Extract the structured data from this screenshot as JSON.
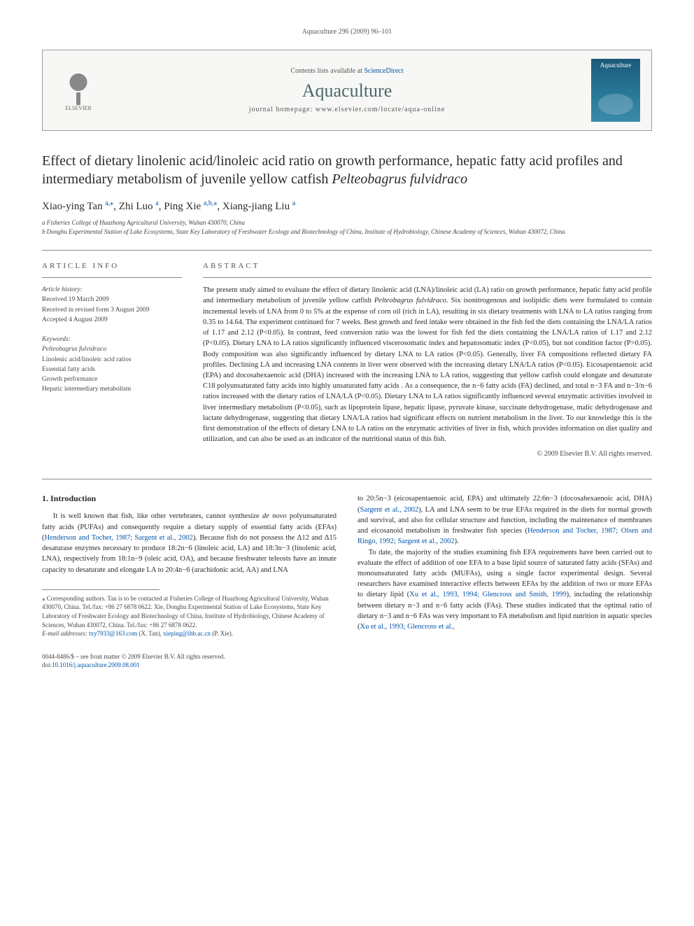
{
  "header": {
    "citation": "Aquaculture 296 (2009) 96–101"
  },
  "banner": {
    "contents_prefix": "Contents lists available at ",
    "contents_link": "ScienceDirect",
    "journal": "Aquaculture",
    "homepage_prefix": "journal homepage: ",
    "homepage": "www.elsevier.com/locate/aqua-online",
    "publisher_label": "ELSEVIER",
    "cover_label": "Aquaculture"
  },
  "title": {
    "main": "Effect of dietary linolenic acid/linoleic acid ratio on growth performance, hepatic fatty acid profiles and intermediary metabolism of juvenile yellow catfish ",
    "species": "Pelteobagrus fulvidraco"
  },
  "authors": {
    "line_parts": [
      {
        "name": "Xiao-ying Tan",
        "sup": "a,",
        "star": true
      },
      {
        "name": ", Zhi Luo",
        "sup": "a"
      },
      {
        "name": ", Ping Xie",
        "sup": "a,b,",
        "star": true
      },
      {
        "name": ", Xiang-jiang Liu",
        "sup": "a"
      }
    ]
  },
  "affiliations": [
    "a Fisheries College of Huazhong Agricultural University, Wuhan 430070, China",
    "b Donghu Experimental Station of Lake Ecosystems, State Key Laboratory of Freshwater Ecology and Biotechnology of China, Institute of Hydrobiology, Chinese Academy of Sciences, Wuhan 430072, China"
  ],
  "article_info": {
    "heading": "ARTICLE INFO",
    "history_label": "Article history:",
    "history": [
      "Received 19 March 2009",
      "Received in revised form 3 August 2009",
      "Accepted 4 August 2009"
    ],
    "keywords_label": "Keywords:",
    "keywords": [
      "Pelteobagrus fulvidraco",
      "Linolenic acid/linoleic acid ratios",
      "Essential fatty acids",
      "Growth performance",
      "Hepatic intermediary metabolism"
    ]
  },
  "abstract": {
    "heading": "ABSTRACT",
    "text_parts": [
      "The present study aimed to evaluate the effect of dietary linolenic acid (LNA)/linoleic acid (LA) ratio on growth performance, hepatic fatty acid profile and intermediary metabolism of juvenile yellow catfish ",
      "Pelteobagrus fulvidraco",
      ". Six isonitrogenous and isolipidic diets were formulated to contain incremental levels of LNA from 0 to 5% at the expense of corn oil (rich in LA), resulting in six dietary treatments with LNA to LA ratios ranging from 0.35 to 14.64. The experiment continued for 7 weeks. Best growth and feed intake were obtained in the fish fed the diets containing the LNA/LA ratios of 1.17 and 2.12 (P<0.05). In contrast, feed conversion ratio was the lowest for fish fed the diets containing the LNA/LA ratios of 1.17 and 2.12 (P<0.05). Dietary LNA to LA ratios significantly influenced viscerosomatic index and hepatosomatic index (P<0.05), but not condition factor (P>0.05). Body composition was also significantly influenced by dietary LNA to LA ratios (P<0.05). Generally, liver FA compositions reflected dietary FA profiles. Declining LA and increasing LNA contents in liver were observed with the increasing dietary LNA/LA ratios (P<0.05). Eicosapentaenoic acid (EPA) and docosahexaenoic acid (DHA) increased with the increasing LNA to LA ratios, suggesting that yellow catfish could elongate and desaturate C18 polyunsaturated fatty acids into highly unsaturated fatty acids . As a consequence, the n−6 fatty acids (FA) declined, and total n−3 FA and n−3/n−6 ratios increased with the dietary ratios of LNA/LA (P<0.05). Dietary LNA to LA ratios significantly influenced several enzymatic activities involved in liver intermediary metabolism (P<0.05), such as lipoprotein lipase, hepatic lipase, pyruvate kinase, succinate dehydrogenase, malic dehydrogenase and lactate dehydrogenase, suggesting that dietary LNA/LA ratios had significant effects on nutrient metabolism in the liver. To our knowledge this is the first demonstration of the effects of dietary LNA to LA ratios on the enzymatic activities of liver in fish, which provides information on diet quality and utilization, and can also be used as an indicator of the nutritional status of this fish."
    ],
    "copyright": "© 2009 Elsevier B.V. All rights reserved."
  },
  "body": {
    "intro_heading": "1. Introduction",
    "left_para": "It is well known that fish, like other vertebrates, cannot synthesize de novo polyunsaturated fatty acids (PUFAs) and consequently require a dietary supply of essential fatty acids (EFAs) (Henderson and Tocher, 1987; Sargent et al., 2002). Because fish do not possess the Δ12 and Δ15 desaturase enzymes necessary to produce 18:2n−6 (linoleic acid, LA) and 18:3n−3 (linolenic acid, LNA), respectively from 18:1n−9 (oleic acid, OA), and because freshwater teleosts have an innate capacity to desaturate and elongate LA to 20:4n−6 (arachidonic acid, AA) and LNA",
    "right_para1": "to 20:5n−3 (eicosapentaenoic acid, EPA) and ultimately 22:6n−3 (docosahexaenoic acid, DHA) (Sargent et al., 2002), LA and LNA seem to be true EFAs required in the diets for normal growth and survival, and also for cellular structure and function, including the maintenance of membranes and eicosanoid metabolism in freshwater fish species (Henderson and Tocher, 1987; Olsen and Ringo, 1992; Sargent et al., 2002).",
    "right_para2": "To date, the majority of the studies examining fish EFA requirements have been carried out to evaluate the effect of addition of one EFA to a base lipid source of saturated fatty acids (SFAs) and monounsaturated fatty acids (MUFAs), using a single factor experimental design. Several researchers have examined interactive effects between EFAs by the addition of two or more EFAs to dietary lipid (Xu et al., 1993, 1994; Glencross and Smith, 1999), including the relationship between dietary n−3 and n−6 fatty acids (FAs). These studies indicated that the optimal ratio of dietary n−3 and n−6 FAs was very important to FA metabolism and lipid nutrition in aquatic species (Xu et al., 1993; Glencross et al.,"
  },
  "footnote": {
    "star_text": "⁎ Corresponding authors. Tan is to be contacted at Fisheries College of Huazhong Agricultural University, Wuhan 430070, China. Tel./fax: +86 27 6878 0622. Xie, Donghu Experimental Station of Lake Ecosystems, State Key Laboratory of Freshwater Ecology and Biotechnology of China, Institute of Hydrobiology, Chinese Academy of Sciences, Wuhan 430072, China. Tel./fax: +86 27 6878 0622.",
    "email_label": "E-mail addresses: ",
    "email1": "txy7933@163.com",
    "email1_who": " (X. Tan), ",
    "email2": "xieping@ihb.ac.cn",
    "email2_who": " (P. Xie)."
  },
  "footer": {
    "line1": "0044-8486/$ – see front matter © 2009 Elsevier B.V. All rights reserved.",
    "doi_prefix": "doi:",
    "doi": "10.1016/j.aquaculture.2009.08.001"
  },
  "colors": {
    "link": "#0055aa",
    "text": "#2a2a2a",
    "muted": "#555",
    "rule": "#888",
    "banner_bg": "#f7f7f5",
    "journal": "#4a6a6a",
    "cover_top": "#1a5a7a",
    "cover_bot": "#3a8aaa"
  }
}
